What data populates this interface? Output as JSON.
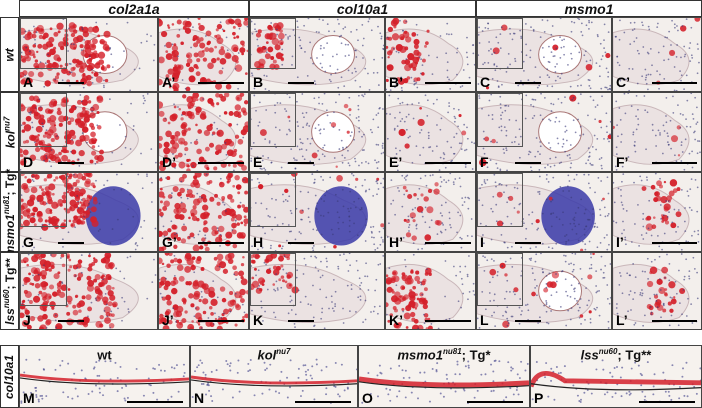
{
  "columns": [
    "col2a1a",
    "col10a1",
    "msmo1"
  ],
  "rows": [
    {
      "label_main": "wt",
      "label_sup": "",
      "label_tail": ""
    },
    {
      "label_main": "kol",
      "label_sup": "nu7",
      "label_tail": ""
    },
    {
      "label_main": "msmo1",
      "label_sup": "nu81",
      "label_tail": "; Tg*"
    },
    {
      "label_main": "lss",
      "label_sup": "nu60",
      "label_tail": "; Tg**"
    }
  ],
  "panel_labels": [
    [
      "A",
      "A’",
      "B",
      "B’",
      "C",
      "C’"
    ],
    [
      "D",
      "D’",
      "E",
      "E’",
      "F",
      "F’"
    ],
    [
      "G",
      "G’",
      "H",
      "H’",
      "I",
      "I’"
    ],
    [
      "J",
      "J’",
      "K",
      "K’",
      "L",
      "L’"
    ]
  ],
  "bottom": {
    "row_label": "col10a1",
    "panels": [
      {
        "label": "M",
        "title_main": "wt",
        "title_sup": "",
        "title_tail": ""
      },
      {
        "label": "N",
        "title_main": "kol",
        "title_sup": "nu7",
        "title_tail": ""
      },
      {
        "label": "O",
        "title_main": "msmo1",
        "title_sup": "nu81",
        "title_tail": "; Tg*"
      },
      {
        "label": "P",
        "title_main": "lss",
        "title_sup": "nu60",
        "title_tail": "; Tg**"
      }
    ]
  },
  "colors": {
    "stain_red": "#d4202a",
    "counter_blue": "#3a3aa8",
    "tissue_bg": "#f4f1ee"
  }
}
